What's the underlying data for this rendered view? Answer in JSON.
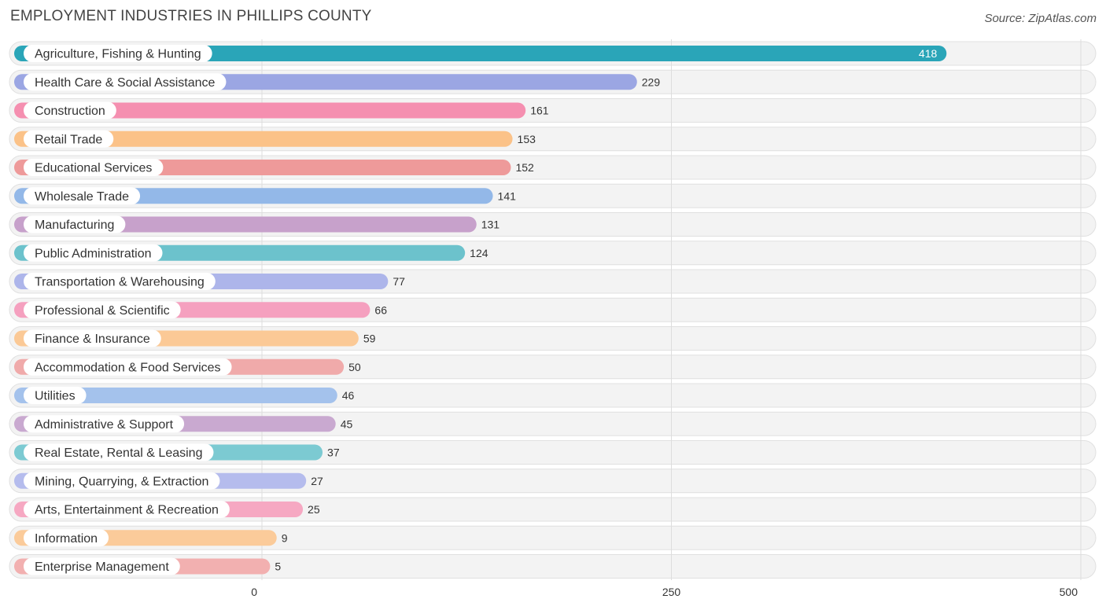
{
  "header": {
    "title": "EMPLOYMENT INDUSTRIES IN PHILLIPS COUNTY",
    "source": "Source: ZipAtlas.com"
  },
  "chart_data": {
    "type": "bar",
    "orientation": "horizontal",
    "title": "EMPLOYMENT INDUSTRIES IN PHILLIPS COUNTY",
    "xlabel": "",
    "ylabel": "",
    "xlim": [
      0,
      500
    ],
    "ticks": [
      0,
      250,
      500
    ],
    "grid": true,
    "categories": [
      "Agriculture, Fishing & Hunting",
      "Health Care & Social Assistance",
      "Construction",
      "Retail Trade",
      "Educational Services",
      "Wholesale Trade",
      "Manufacturing",
      "Public Administration",
      "Transportation & Warehousing",
      "Professional & Scientific",
      "Finance & Insurance",
      "Accommodation & Food Services",
      "Utilities",
      "Administrative & Support",
      "Real Estate, Rental & Leasing",
      "Mining, Quarrying, & Extraction",
      "Arts, Entertainment & Recreation",
      "Information",
      "Enterprise Management"
    ],
    "values": [
      418,
      229,
      161,
      153,
      152,
      141,
      131,
      124,
      77,
      66,
      59,
      50,
      46,
      45,
      37,
      27,
      25,
      9,
      5
    ],
    "colors": [
      "#2aa5b8",
      "#9ba6e3",
      "#f58fb0",
      "#fbc288",
      "#ee9a9a",
      "#93b8e8",
      "#c7a1cb",
      "#6cc2cc",
      "#adb5ea",
      "#f5a0bf",
      "#fbc996",
      "#f0aaaa",
      "#a4c2ec",
      "#c9a9d0",
      "#7ccad2",
      "#b5bced",
      "#f6a8c2",
      "#fbcb9a",
      "#f2b0b0"
    ]
  }
}
